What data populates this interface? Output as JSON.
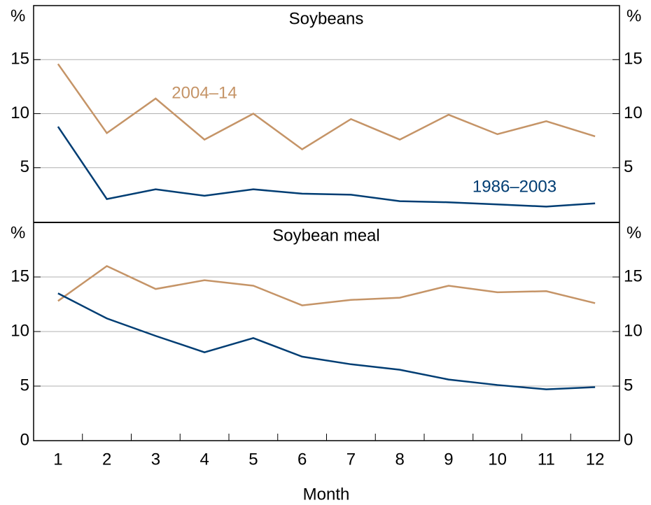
{
  "chart_data": [
    {
      "type": "line",
      "title": "Soybeans",
      "y_label": "%",
      "x": [
        1,
        2,
        3,
        4,
        5,
        6,
        7,
        8,
        9,
        10,
        11,
        12
      ],
      "xlim": [
        0.5,
        12.5
      ],
      "ylim": [
        0,
        20
      ],
      "yticks": [
        5,
        10,
        15
      ],
      "grid": true,
      "series": [
        {
          "name": "2004–14",
          "color": "#c59467",
          "values": [
            14.6,
            8.2,
            11.4,
            7.6,
            10.0,
            6.7,
            9.5,
            7.6,
            9.9,
            8.1,
            9.3,
            7.9
          ]
        },
        {
          "name": "1986–2003",
          "color": "#003d73",
          "values": [
            8.8,
            2.1,
            3.0,
            2.4,
            3.0,
            2.6,
            2.5,
            1.9,
            1.8,
            1.6,
            1.4,
            1.7
          ]
        }
      ]
    },
    {
      "type": "line",
      "title": "Soybean meal",
      "y_label": "%",
      "x_label": "Month",
      "x": [
        1,
        2,
        3,
        4,
        5,
        6,
        7,
        8,
        9,
        10,
        11,
        12
      ],
      "xlim": [
        0.5,
        12.5
      ],
      "xticks": [
        1,
        2,
        3,
        4,
        5,
        6,
        7,
        8,
        9,
        10,
        11,
        12
      ],
      "ylim": [
        0,
        20
      ],
      "yticks": [
        0,
        5,
        10,
        15
      ],
      "grid": true,
      "series": [
        {
          "color": "#c59467",
          "values": [
            12.8,
            16.0,
            13.9,
            14.7,
            14.2,
            12.4,
            12.9,
            13.1,
            14.2,
            13.6,
            13.7,
            12.6
          ]
        },
        {
          "color": "#003d73",
          "values": [
            13.5,
            11.2,
            9.6,
            8.1,
            9.4,
            7.7,
            7.0,
            6.5,
            5.6,
            5.1,
            4.7,
            4.9
          ]
        }
      ]
    }
  ]
}
